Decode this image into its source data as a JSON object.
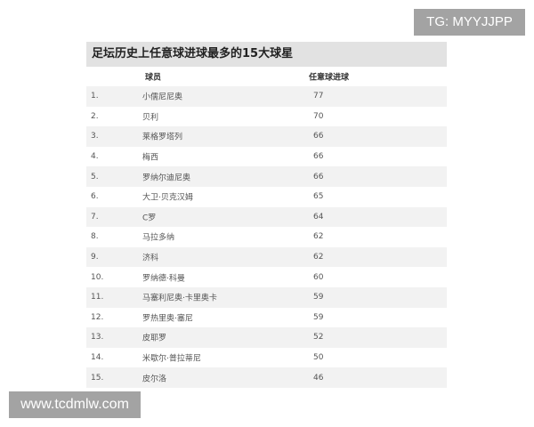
{
  "watermarks": {
    "top": "TG: MYYJJPP",
    "bottom": "www.tcdmlw.com"
  },
  "table": {
    "title": "足坛历史上任意球进球最多的15大球星",
    "columns": [
      "球员",
      "任意球进球"
    ],
    "rows": [
      {
        "rank": "1.",
        "name": "小儒尼尼奥",
        "goals": "77"
      },
      {
        "rank": "2.",
        "name": "贝利",
        "goals": "70"
      },
      {
        "rank": "3.",
        "name": "莱格罗塔列",
        "goals": "66"
      },
      {
        "rank": "4.",
        "name": "梅西",
        "goals": "66"
      },
      {
        "rank": "5.",
        "name": "罗纳尔迪尼奥",
        "goals": "66"
      },
      {
        "rank": "6.",
        "name": "大卫·贝克汉姆",
        "goals": "65"
      },
      {
        "rank": "7.",
        "name": "C罗",
        "goals": "64"
      },
      {
        "rank": "8.",
        "name": "马拉多纳",
        "goals": "62"
      },
      {
        "rank": "9.",
        "name": "济科",
        "goals": "62"
      },
      {
        "rank": "10.",
        "name": "罗纳德·科曼",
        "goals": "60"
      },
      {
        "rank": "11.",
        "name": "马塞利尼奥·卡里奥卡",
        "goals": "59"
      },
      {
        "rank": "12.",
        "name": "罗热里奥·塞尼",
        "goals": "59"
      },
      {
        "rank": "13.",
        "name": "皮耶罗",
        "goals": "52"
      },
      {
        "rank": "14.",
        "name": "米歇尔·普拉蒂尼",
        "goals": "50"
      },
      {
        "rank": "15.",
        "name": "皮尔洛",
        "goals": "46"
      }
    ]
  }
}
